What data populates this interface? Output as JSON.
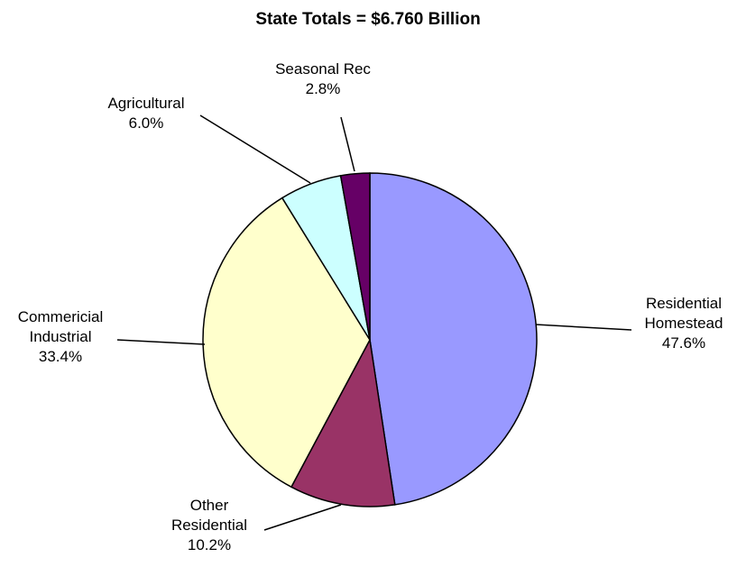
{
  "chart_data": {
    "type": "pie",
    "title": "State Totals = $6.760 Billion",
    "slices": [
      {
        "label_lines": [
          "Residential",
          "Homestead"
        ],
        "value_label": "47.6%",
        "value": 47.6,
        "color": "#9999FF"
      },
      {
        "label_lines": [
          "Other",
          "Residential"
        ],
        "value_label": "10.2%",
        "value": 10.2,
        "color": "#993366"
      },
      {
        "label_lines": [
          "Commericial",
          "Industrial"
        ],
        "value_label": "33.4%",
        "value": 33.4,
        "color": "#FFFFCC"
      },
      {
        "label_lines": [
          "Agricultural"
        ],
        "value_label": "6.0%",
        "value": 6.0,
        "color": "#CCFFFF"
      },
      {
        "label_lines": [
          "Seasonal Rec"
        ],
        "value_label": "2.8%",
        "value": 2.8,
        "color": "#660066"
      }
    ],
    "start_angle": "12 o'clock",
    "direction": "clockwise",
    "legend": "none"
  }
}
